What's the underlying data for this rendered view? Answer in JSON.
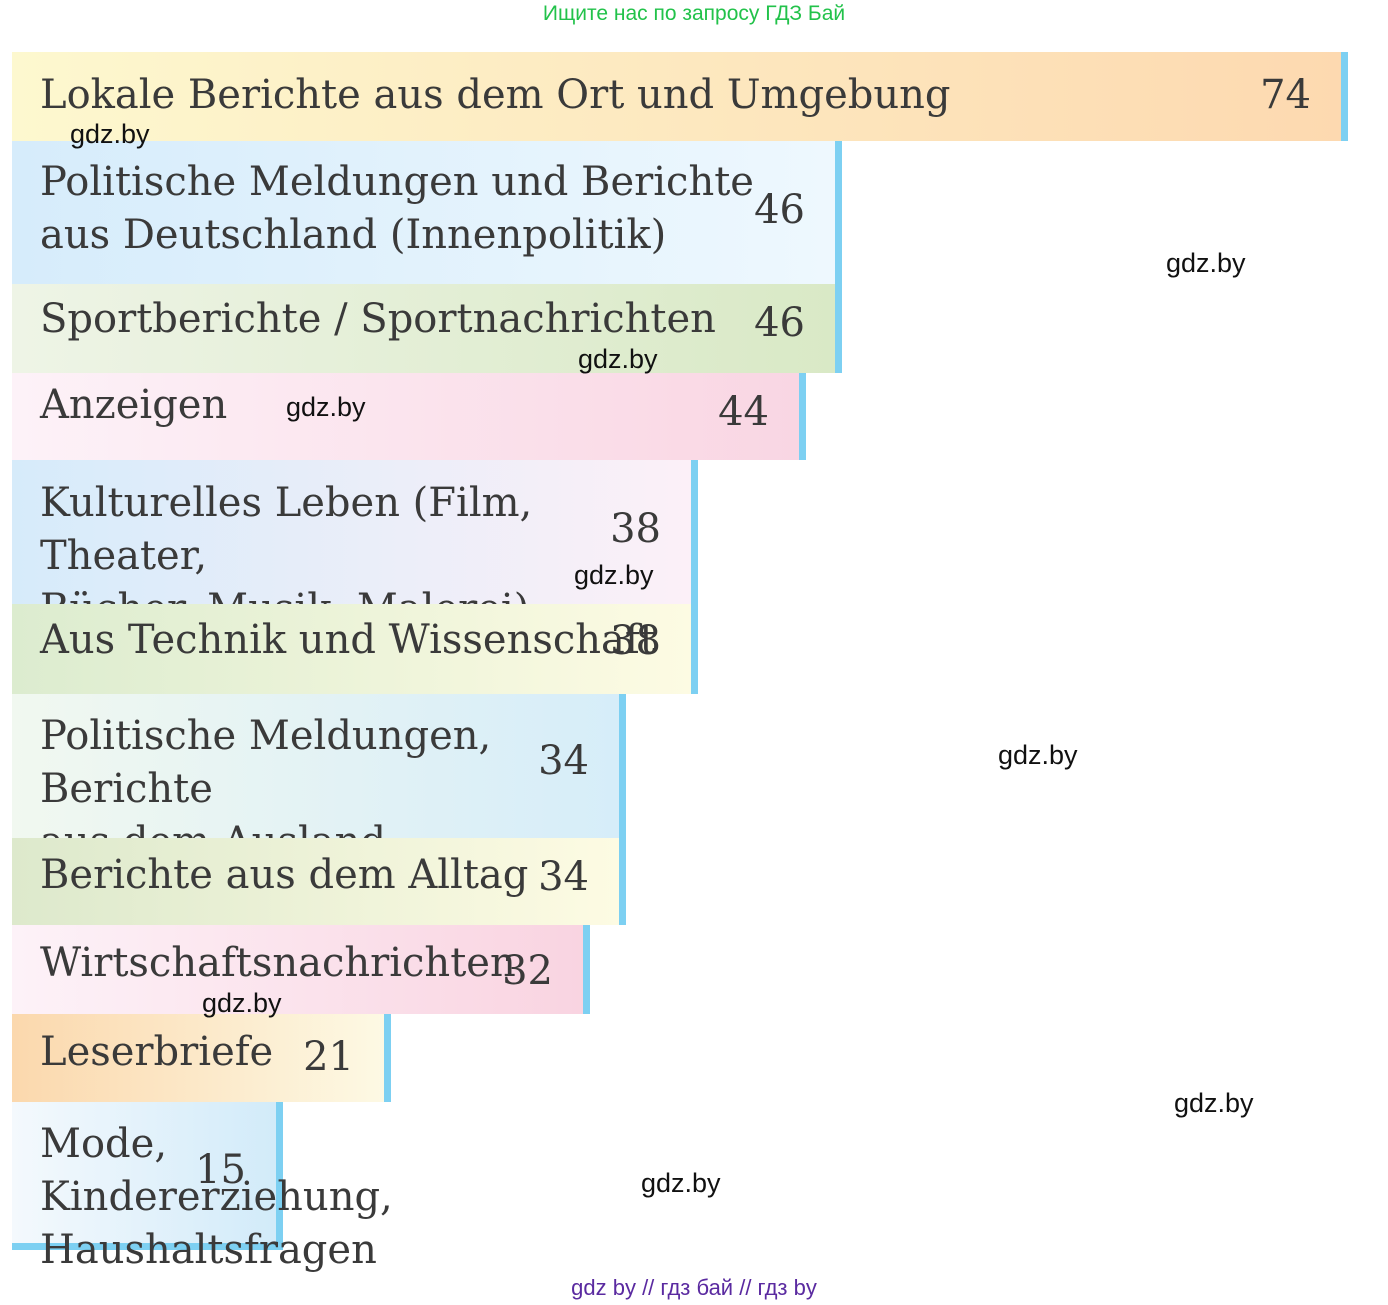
{
  "header": {
    "banner": "Ищите нас по запросу ГДЗ Бай"
  },
  "footer": {
    "text": "gdz by  //  гдз бай  //  гдз by"
  },
  "watermarks": [
    "gdz.by",
    "gdz.by",
    "gdz.by",
    "gdz.by",
    "gdz.by",
    "gdz.by",
    "gdz.by",
    "gdz.by",
    "gdz.by"
  ],
  "chart_data": {
    "type": "bar",
    "orientation": "horizontal",
    "title": "",
    "xlabel": "",
    "ylabel": "",
    "xlim": [
      0,
      74
    ],
    "grid": false,
    "legend": "none",
    "border_color": "#7dd0f2",
    "categories": [
      "Lokale Berichte aus dem Ort und Umgebung",
      "Politische Meldungen und Berichte\naus Deutschland (Innenpolitik)",
      "Sportberichte / Sportnachrichten",
      "Anzeigen",
      " Kulturelles Leben (Film, Theater,\nBücher, Musik,  Malerei)",
      "Aus Technik und Wissenschaft",
      "Politische Meldungen, Berichte\naus dem Ausland (Außenpolitik)",
      "Berichte aus dem Alltag",
      "Wirtschaftsnachrichten",
      "Leserbriefe",
      "Mode, Kindererziehung,\nHaushaltsfragen"
    ],
    "values": [
      74,
      46,
      46,
      44,
      38,
      38,
      34,
      34,
      32,
      21,
      15
    ],
    "value_labels": [
      "74",
      "46",
      "46",
      "44",
      "38",
      "38",
      "34",
      "34",
      "32",
      "21",
      "15"
    ],
    "bar_gradients": [
      [
        "#fdf8cf",
        "#fdd9b0"
      ],
      [
        "#d6ecfb",
        "#eef8fe"
      ],
      [
        "#eef4e6",
        "#d9e9c6"
      ],
      [
        "#fdf2f8",
        "#f9d6e3"
      ],
      [
        "#d6ebfa",
        "#fcf0f8"
      ],
      [
        "#dceccf",
        "#fdfbe3"
      ],
      [
        "#f1f8f0",
        "#d6edf9"
      ],
      [
        "#dde9cc",
        "#fdfbe3"
      ],
      [
        "#fdf2f8",
        "#f9d4e1"
      ],
      [
        "#fbd8ad",
        "#fdf9e4"
      ],
      [
        "#f4f9fd",
        "#d2ebf9"
      ]
    ]
  }
}
